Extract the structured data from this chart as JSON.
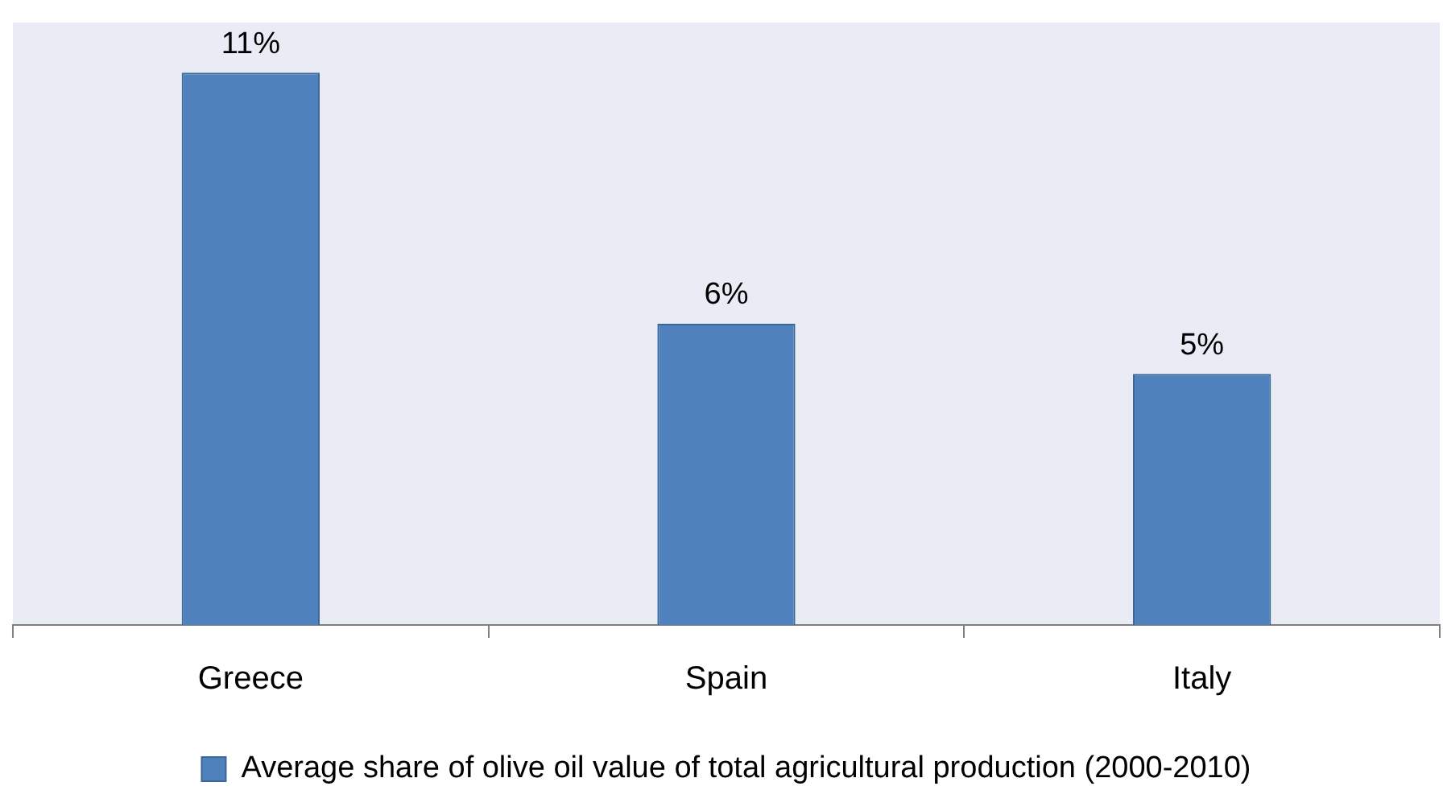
{
  "chart_data": {
    "type": "bar",
    "categories": [
      "Greece",
      "Spain",
      "Italy"
    ],
    "series": [
      {
        "name": "Average share of olive oil value of total agricultural production (2000-2010)",
        "color": "#4f81bd",
        "values": [
          11,
          6,
          5
        ],
        "value_labels": [
          "11%",
          "6%",
          "5%"
        ]
      }
    ],
    "legend": "bottom",
    "grid": false
  }
}
